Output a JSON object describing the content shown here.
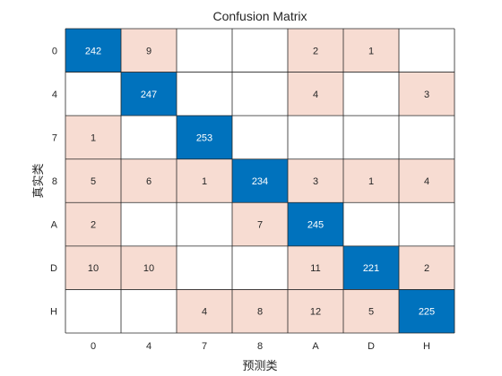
{
  "chart_data": {
    "type": "heatmap",
    "title": "Confusion Matrix",
    "xlabel": "预测类",
    "ylabel": "真实类",
    "row_labels": [
      "0",
      "4",
      "7",
      "8",
      "A",
      "D",
      "H"
    ],
    "col_labels": [
      "0",
      "4",
      "7",
      "8",
      "A",
      "D",
      "H"
    ],
    "values": [
      [
        242,
        9,
        0,
        0,
        2,
        1,
        0
      ],
      [
        0,
        247,
        0,
        0,
        4,
        0,
        3
      ],
      [
        1,
        0,
        253,
        0,
        0,
        0,
        0
      ],
      [
        5,
        6,
        1,
        234,
        3,
        1,
        4
      ],
      [
        2,
        0,
        0,
        7,
        245,
        0,
        0
      ],
      [
        10,
        10,
        0,
        0,
        11,
        221,
        2
      ],
      [
        0,
        0,
        4,
        8,
        12,
        5,
        225
      ]
    ],
    "zero_cells_shown_blank": true,
    "colors": {
      "diagonal_fill": "#0072BD",
      "diagonal_text": "#ffffff",
      "offdiagonal_fill": "#F7DCD2",
      "offdiagonal_text": "#262626",
      "empty_fill": "#ffffff",
      "grid": "#262626"
    }
  }
}
